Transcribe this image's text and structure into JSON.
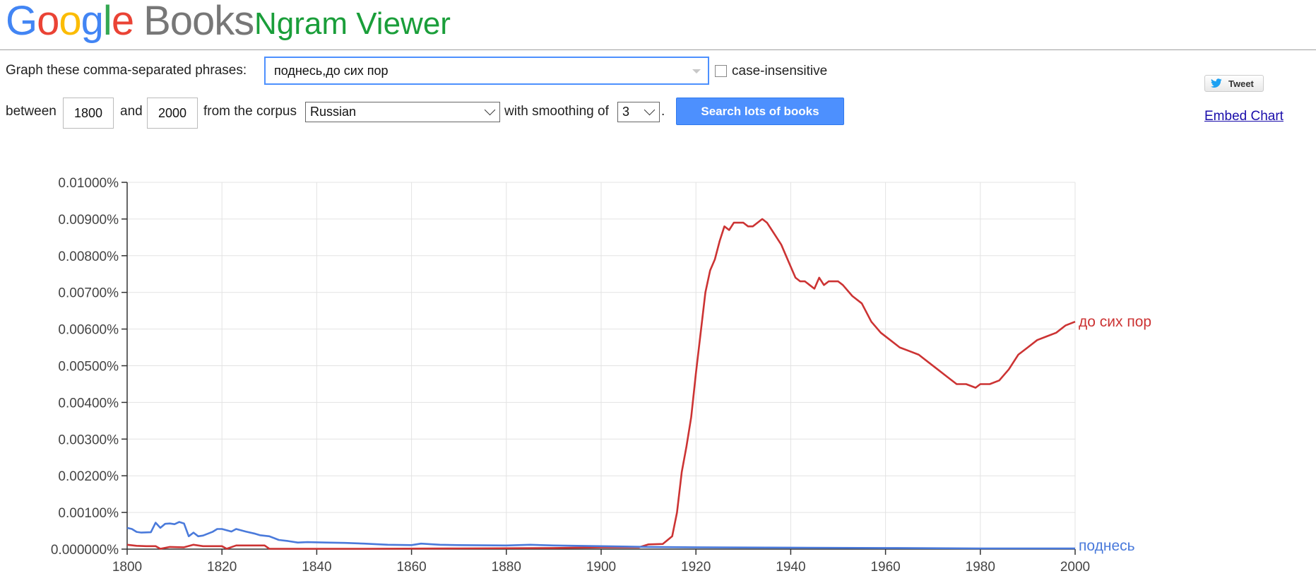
{
  "header": {
    "logo_letters": [
      "G",
      "o",
      "o",
      "g",
      "l",
      "e"
    ],
    "logo_books": "Books",
    "app_title": "Ngram Viewer"
  },
  "form": {
    "phrases_label": "Graph these comma-separated phrases:",
    "phrases_value": "поднесь,до сих пор",
    "case_insensitive_label": "case-insensitive",
    "between_label": "between",
    "start_year": "1800",
    "and_label": "and",
    "end_year": "2000",
    "corpus_label": "from the corpus",
    "corpus_value": "Russian",
    "smoothing_label": "with smoothing of",
    "smoothing_value": "3",
    "period": ".",
    "search_button": "Search lots of books"
  },
  "social": {
    "tweet_label": "Tweet",
    "embed_label": "Embed Chart"
  },
  "colors": {
    "red": "#cc3333",
    "blue": "#4a7adb",
    "grid": "#e3e3e3"
  },
  "chart_data": {
    "type": "line",
    "x_ticks": [
      1800,
      1820,
      1840,
      1860,
      1880,
      1900,
      1920,
      1940,
      1960,
      1980,
      2000
    ],
    "y_ticks": [
      "0.000000%",
      "0.00100%",
      "0.00200%",
      "0.00300%",
      "0.00400%",
      "0.00500%",
      "0.00600%",
      "0.00700%",
      "0.00800%",
      "0.00900%",
      "0.01000%"
    ],
    "xlim": [
      1800,
      2000
    ],
    "ylim": [
      0,
      0.01
    ],
    "grid": true,
    "series": [
      {
        "name": "до сих пор",
        "color": "#cc3333",
        "points": [
          [
            1800,
            0.00012
          ],
          [
            1802,
            9e-05
          ],
          [
            1804,
            8e-05
          ],
          [
            1806,
            8e-05
          ],
          [
            1807,
            1e-05
          ],
          [
            1809,
            6e-05
          ],
          [
            1812,
            5e-05
          ],
          [
            1814,
            0.00012
          ],
          [
            1816,
            8e-05
          ],
          [
            1820,
            8e-05
          ],
          [
            1821,
            1e-05
          ],
          [
            1823,
            0.0001
          ],
          [
            1826,
            0.0001
          ],
          [
            1829,
            0.0001
          ],
          [
            1830,
            1e-05
          ],
          [
            1850,
            1e-05
          ],
          [
            1870,
            2e-05
          ],
          [
            1890,
            3e-05
          ],
          [
            1900,
            5e-05
          ],
          [
            1908,
            5e-05
          ],
          [
            1910,
            0.00013
          ],
          [
            1913,
            0.00014
          ],
          [
            1915,
            0.00035
          ],
          [
            1916,
            0.001
          ],
          [
            1917,
            0.0021
          ],
          [
            1918,
            0.0028
          ],
          [
            1919,
            0.0036
          ],
          [
            1920,
            0.0048
          ],
          [
            1921,
            0.0059
          ],
          [
            1922,
            0.007
          ],
          [
            1923,
            0.0076
          ],
          [
            1924,
            0.0079
          ],
          [
            1925,
            0.0084
          ],
          [
            1926,
            0.0088
          ],
          [
            1927,
            0.0087
          ],
          [
            1928,
            0.0089
          ],
          [
            1929,
            0.0089
          ],
          [
            1930,
            0.0089
          ],
          [
            1931,
            0.0088
          ],
          [
            1932,
            0.0088
          ],
          [
            1933,
            0.0089
          ],
          [
            1934,
            0.009
          ],
          [
            1935,
            0.0089
          ],
          [
            1936,
            0.0087
          ],
          [
            1937,
            0.0085
          ],
          [
            1938,
            0.0083
          ],
          [
            1939,
            0.008
          ],
          [
            1940,
            0.0077
          ],
          [
            1941,
            0.0074
          ],
          [
            1942,
            0.0073
          ],
          [
            1943,
            0.0073
          ],
          [
            1944,
            0.0072
          ],
          [
            1945,
            0.0071
          ],
          [
            1946,
            0.0074
          ],
          [
            1947,
            0.0072
          ],
          [
            1948,
            0.0073
          ],
          [
            1949,
            0.0073
          ],
          [
            1950,
            0.0073
          ],
          [
            1951,
            0.0072
          ],
          [
            1953,
            0.0069
          ],
          [
            1955,
            0.0067
          ],
          [
            1957,
            0.0062
          ],
          [
            1959,
            0.0059
          ],
          [
            1961,
            0.0057
          ],
          [
            1963,
            0.0055
          ],
          [
            1965,
            0.0054
          ],
          [
            1967,
            0.0053
          ],
          [
            1969,
            0.0051
          ],
          [
            1971,
            0.0049
          ],
          [
            1973,
            0.0047
          ],
          [
            1975,
            0.0045
          ],
          [
            1977,
            0.0045
          ],
          [
            1979,
            0.0044
          ],
          [
            1980,
            0.0045
          ],
          [
            1982,
            0.0045
          ],
          [
            1984,
            0.0046
          ],
          [
            1986,
            0.0049
          ],
          [
            1988,
            0.0053
          ],
          [
            1990,
            0.0055
          ],
          [
            1992,
            0.0057
          ],
          [
            1994,
            0.0058
          ],
          [
            1996,
            0.0059
          ],
          [
            1998,
            0.0061
          ],
          [
            2000,
            0.0062
          ]
        ]
      },
      {
        "name": "поднесь",
        "color": "#4a7adb",
        "points": [
          [
            1800,
            0.00058
          ],
          [
            1801,
            0.00055
          ],
          [
            1802,
            0.00047
          ],
          [
            1803,
            0.00045
          ],
          [
            1805,
            0.00046
          ],
          [
            1806,
            0.00072
          ],
          [
            1807,
            0.00058
          ],
          [
            1808,
            0.00069
          ],
          [
            1809,
            0.0007
          ],
          [
            1810,
            0.00068
          ],
          [
            1811,
            0.00074
          ],
          [
            1812,
            0.0007
          ],
          [
            1813,
            0.00035
          ],
          [
            1814,
            0.00045
          ],
          [
            1815,
            0.00035
          ],
          [
            1816,
            0.00037
          ],
          [
            1818,
            0.00047
          ],
          [
            1819,
            0.00055
          ],
          [
            1820,
            0.00055
          ],
          [
            1822,
            0.00048
          ],
          [
            1823,
            0.00055
          ],
          [
            1825,
            0.00048
          ],
          [
            1827,
            0.00042
          ],
          [
            1828,
            0.00038
          ],
          [
            1830,
            0.00035
          ],
          [
            1832,
            0.00025
          ],
          [
            1834,
            0.00022
          ],
          [
            1836,
            0.00018
          ],
          [
            1838,
            0.00019
          ],
          [
            1842,
            0.00018
          ],
          [
            1846,
            0.00017
          ],
          [
            1850,
            0.00015
          ],
          [
            1855,
            0.00012
          ],
          [
            1860,
            0.00011
          ],
          [
            1862,
            0.00015
          ],
          [
            1866,
            0.00012
          ],
          [
            1870,
            0.00011
          ],
          [
            1880,
            0.0001
          ],
          [
            1885,
            0.00012
          ],
          [
            1890,
            0.0001
          ],
          [
            1900,
            8e-05
          ],
          [
            1910,
            6e-05
          ],
          [
            1920,
            5e-05
          ],
          [
            1940,
            4e-05
          ],
          [
            1960,
            3e-05
          ],
          [
            1980,
            2e-05
          ],
          [
            2000,
            2e-05
          ]
        ]
      }
    ]
  }
}
